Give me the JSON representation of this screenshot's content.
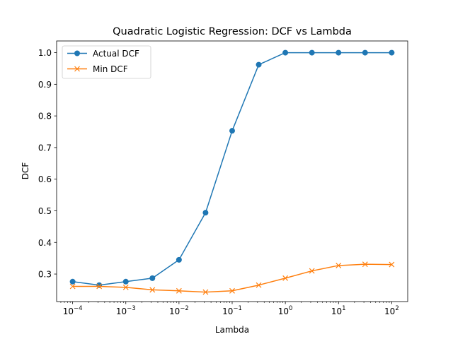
{
  "chart_data": {
    "type": "line",
    "title": "Quadratic Logistic Regression: DCF vs Lambda",
    "xlabel": "Lambda",
    "ylabel": "DCF",
    "xscale": "log",
    "xlim": [
      5e-05,
      200
    ],
    "ylim": [
      0.213,
      1.037
    ],
    "grid": false,
    "legend_position": "top-left",
    "x": [
      0.0001,
      0.000316,
      0.001,
      0.00316,
      0.01,
      0.0316,
      0.1,
      0.316,
      1,
      3.16,
      10,
      31.6,
      100
    ],
    "x_ticks": [
      {
        "value": 0.0001,
        "base": "10",
        "exp": "−4"
      },
      {
        "value": 0.001,
        "base": "10",
        "exp": "−3"
      },
      {
        "value": 0.01,
        "base": "10",
        "exp": "−2"
      },
      {
        "value": 0.1,
        "base": "10",
        "exp": "−1"
      },
      {
        "value": 1,
        "base": "10",
        "exp": "0"
      },
      {
        "value": 10,
        "base": "10",
        "exp": "1"
      },
      {
        "value": 100,
        "base": "10",
        "exp": "2"
      }
    ],
    "y_ticks": [
      "0.3",
      "0.4",
      "0.5",
      "0.6",
      "0.7",
      "0.8",
      "0.9",
      "1.0"
    ],
    "series": [
      {
        "name": "Actual DCF",
        "color": "#1f77b4",
        "marker": "circle",
        "values": [
          0.276,
          0.265,
          0.276,
          0.287,
          0.345,
          0.494,
          0.753,
          0.962,
          1.0,
          1.0,
          1.0,
          1.0,
          1.0
        ]
      },
      {
        "name": "Min DCF",
        "color": "#ff7f0e",
        "marker": "x",
        "values": [
          0.261,
          0.261,
          0.258,
          0.25,
          0.247,
          0.243,
          0.247,
          0.265,
          0.287,
          0.31,
          0.327,
          0.331,
          0.33
        ]
      }
    ]
  }
}
